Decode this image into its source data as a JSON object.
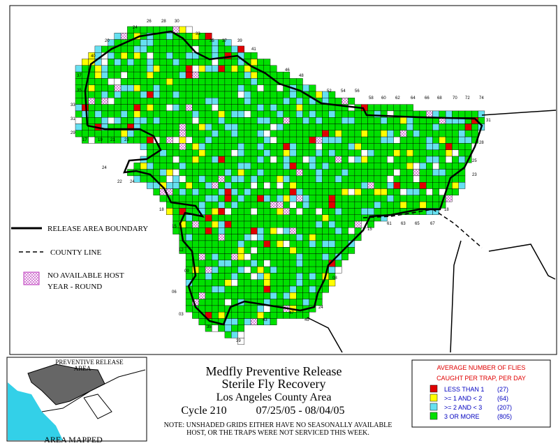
{
  "grid_labels": [
    "26",
    "28",
    "30",
    "24",
    "20",
    "33",
    "35",
    "37",
    "39",
    "41",
    "40",
    "37",
    "35",
    "33",
    "31",
    "29",
    "17",
    "19",
    "21",
    "23",
    "46",
    "48",
    "52",
    "54",
    "56",
    "58",
    "60",
    "62",
    "64",
    "66",
    "68",
    "70",
    "72",
    "74",
    "31",
    "28",
    "25",
    "23",
    "18",
    "24",
    "22",
    "24",
    "18",
    "15",
    "12",
    "09",
    "06",
    "03",
    "35",
    "39",
    "43",
    "47",
    "49",
    "24",
    "08",
    "61",
    "63",
    "65",
    "67",
    "15"
  ],
  "legend": {
    "boundary": "RELEASE AREA BOUNDARY",
    "county": "COUNTY LINE",
    "host_1": "NO AVAILABLE HOST",
    "host_2": "YEAR - ROUND"
  },
  "inset": {
    "label_1": "PREVENTIVE RELEASE",
    "label_2": "AREA",
    "caption": "AREA MAPPED"
  },
  "title": {
    "line_1": "Medfly Preventive Release",
    "line_2": "Sterile Fly Recovery",
    "line_3": "Los Angeles County Area",
    "cycle": "Cycle 210",
    "dates": "07/25/05 - 08/04/05",
    "note_1": "NOTE: UNSHADED GRIDS EITHER HAVE NO SEASONALLY AVAILABLE",
    "note_2": "HOST, OR THE TRAPS WERE NOT SERVICED THIS WEEK."
  },
  "key": {
    "heading_1": "AVERAGE NUMBER OF FLIES",
    "heading_2": "CAUGHT PER TRAP, PER DAY",
    "items": [
      {
        "label": "LESS THAN 1",
        "count": "(27)",
        "color": "#e00000"
      },
      {
        "label": ">= 1 AND < 2",
        "count": "(64)",
        "color": "#ffff00"
      },
      {
        "label": ">= 2 AND < 3",
        "count": "(207)",
        "color": "#66e0f0"
      },
      {
        "label": "3 OR MORE",
        "count": "(805)",
        "color": "#00e000"
      }
    ]
  }
}
